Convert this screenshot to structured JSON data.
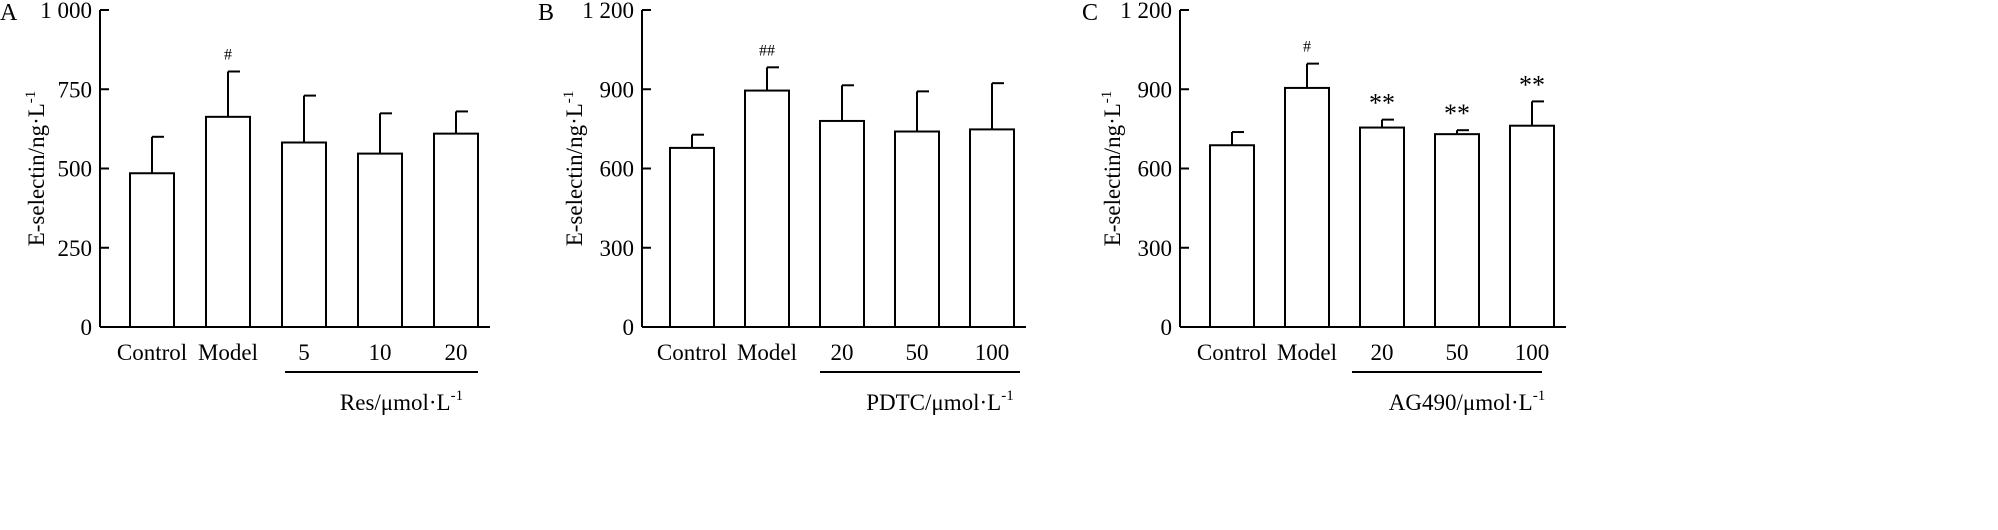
{
  "colors": {
    "ink": "#000000",
    "bar_fill": "#ffffff",
    "background": "#ffffff"
  },
  "chart_data": [
    {
      "type": "bar",
      "panel_label": "A",
      "ylabel": "E-selectin/ng·L",
      "ylabel_exp": "-1",
      "ylim": [
        0,
        1000
      ],
      "yticks": [
        0,
        250,
        500,
        750,
        1000
      ],
      "ytick_labels": [
        "0",
        "250",
        "500",
        "750",
        "1 000"
      ],
      "categories": [
        "Control",
        "Model",
        "5",
        "10",
        "20"
      ],
      "values": [
        485,
        663,
        582,
        547,
        610
      ],
      "errors": [
        115,
        143,
        148,
        127,
        70
      ],
      "significance": [
        "",
        "#",
        "",
        "",
        ""
      ],
      "group_label": "Res/μmol·L",
      "group_label_exp": "-1",
      "group_start_index": 2
    },
    {
      "type": "bar",
      "panel_label": "B",
      "ylabel": "E-selectin/ng·L",
      "ylabel_exp": "-1",
      "ylim": [
        0,
        1200
      ],
      "yticks": [
        0,
        300,
        600,
        900,
        1200
      ],
      "ytick_labels": [
        "0",
        "300",
        "600",
        "900",
        "1 200"
      ],
      "categories": [
        "Control",
        "Model",
        "20",
        "50",
        "100"
      ],
      "values": [
        678,
        895,
        780,
        740,
        748
      ],
      "errors": [
        50,
        88,
        135,
        152,
        175
      ],
      "significance": [
        "",
        "##",
        "",
        "",
        ""
      ],
      "group_label": "PDTC/μmol·L",
      "group_label_exp": "-1",
      "group_start_index": 2
    },
    {
      "type": "bar",
      "panel_label": "C",
      "ylabel": "E-selectin/ng·L",
      "ylabel_exp": "-1",
      "ylim": [
        0,
        1200
      ],
      "yticks": [
        0,
        300,
        600,
        900,
        1200
      ],
      "ytick_labels": [
        "0",
        "300",
        "600",
        "900",
        "1 200"
      ],
      "categories": [
        "Control",
        "Model",
        "20",
        "50",
        "100"
      ],
      "values": [
        688,
        905,
        755,
        730,
        762
      ],
      "errors": [
        50,
        92,
        30,
        15,
        92
      ],
      "significance": [
        "",
        "#",
        "**",
        "**",
        "**"
      ],
      "group_label": "AG490/μmol·L",
      "group_label_exp": "-1",
      "group_start_index": 2
    }
  ]
}
